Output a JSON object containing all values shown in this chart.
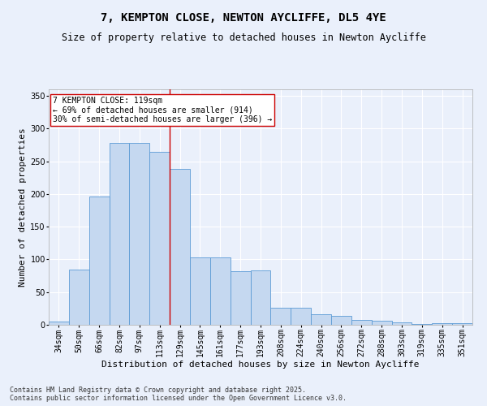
{
  "title_line1": "7, KEMPTON CLOSE, NEWTON AYCLIFFE, DL5 4YE",
  "title_line2": "Size of property relative to detached houses in Newton Aycliffe",
  "xlabel": "Distribution of detached houses by size in Newton Aycliffe",
  "ylabel": "Number of detached properties",
  "categories": [
    "34sqm",
    "50sqm",
    "66sqm",
    "82sqm",
    "97sqm",
    "113sqm",
    "129sqm",
    "145sqm",
    "161sqm",
    "177sqm",
    "193sqm",
    "208sqm",
    "224sqm",
    "240sqm",
    "256sqm",
    "272sqm",
    "288sqm",
    "303sqm",
    "319sqm",
    "335sqm",
    "351sqm"
  ],
  "values": [
    5,
    84,
    196,
    278,
    278,
    265,
    238,
    103,
    103,
    82,
    83,
    26,
    26,
    16,
    14,
    7,
    6,
    4,
    1,
    3,
    2
  ],
  "bar_color": "#c5d8f0",
  "bar_edge_color": "#5b9bd5",
  "vline_x": 5.5,
  "annotation_line1": "7 KEMPTON CLOSE: 119sqm",
  "annotation_line2": "← 69% of detached houses are smaller (914)",
  "annotation_line3": "30% of semi-detached houses are larger (396) →",
  "annotation_box_color": "#ffffff",
  "annotation_box_edge": "#cc0000",
  "vline_color": "#cc0000",
  "ylim": [
    0,
    360
  ],
  "yticks": [
    0,
    50,
    100,
    150,
    200,
    250,
    300,
    350
  ],
  "background_color": "#eaf0fb",
  "grid_color": "#ffffff",
  "footer_line1": "Contains HM Land Registry data © Crown copyright and database right 2025.",
  "footer_line2": "Contains public sector information licensed under the Open Government Licence v3.0.",
  "title_fontsize": 10,
  "subtitle_fontsize": 8.5,
  "axis_label_fontsize": 8,
  "tick_fontsize": 7,
  "annotation_fontsize": 7,
  "footer_fontsize": 6
}
